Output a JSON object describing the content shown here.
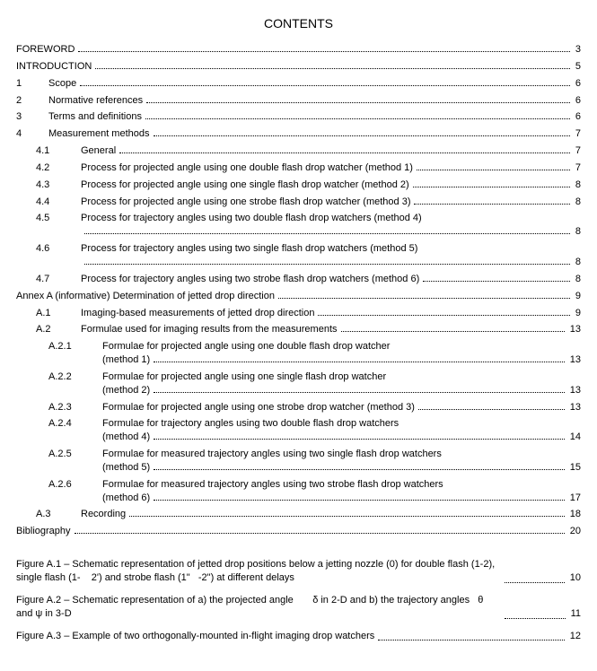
{
  "title": "CONTENTS",
  "toc": [
    {
      "indent": 0,
      "num": "",
      "label": "FOREWORD",
      "page": "3"
    },
    {
      "indent": 0,
      "num": "",
      "label": "INTRODUCTION",
      "page": "5"
    },
    {
      "indent": 1,
      "num": "1",
      "label": "Scope",
      "page": "6"
    },
    {
      "indent": 1,
      "num": "2",
      "label": "Normative references",
      "page": "6"
    },
    {
      "indent": 1,
      "num": "3",
      "label": "Terms and definitions",
      "page": "6"
    },
    {
      "indent": 1,
      "num": "4",
      "label": "Measurement methods",
      "page": "7"
    },
    {
      "indent": 2,
      "num": "4.1",
      "label": "General",
      "page": "7"
    },
    {
      "indent": 2,
      "num": "4.2",
      "label": "Process for projected angle using one double flash drop watcher (method 1)",
      "page": "7"
    },
    {
      "indent": 2,
      "num": "4.3",
      "label": "Process for projected angle using one single flash drop watcher (method 2)",
      "page": "8"
    },
    {
      "indent": 2,
      "num": "4.4",
      "label": "Process for projected angle using one strobe flash drop watcher (method 3)",
      "page": "8"
    },
    {
      "indent": 2,
      "num": "4.5",
      "label": "Process for trajectory angles using two double flash drop watchers (method 4)",
      "page": "8",
      "wrap": true
    },
    {
      "indent": 2,
      "num": "4.6",
      "label": "Process for trajectory angles using two single flash drop watchers (method 5)",
      "page": "8",
      "wrap": true
    },
    {
      "indent": 2,
      "num": "4.7",
      "label": "Process for trajectory angles using two strobe flash drop watchers (method 6)",
      "page": "8"
    },
    {
      "indent": 0,
      "num": "",
      "label": "Annex A (informative)  Determination of jetted drop direction",
      "page": "9"
    },
    {
      "indent": 2,
      "num": "A.1",
      "label": "Imaging-based measurements of jetted drop direction",
      "page": "9"
    },
    {
      "indent": 2,
      "num": "A.2",
      "label": "Formulae used for imaging results from the measurements",
      "page": "13"
    },
    {
      "indent": 3,
      "num": "A.2.1",
      "label": "Formulae for projected angle using one double flash drop watcher (method 1)",
      "page": "13",
      "wrap2": true
    },
    {
      "indent": 3,
      "num": "A.2.2",
      "label": "Formulae for projected angle using one single flash drop watcher (method 2)",
      "page": "13",
      "wrap2": true
    },
    {
      "indent": 3,
      "num": "A.2.3",
      "label": "Formulae for projected angle using one strobe drop watcher (method 3)",
      "page": "13"
    },
    {
      "indent": 3,
      "num": "A.2.4",
      "label": "Formulae for trajectory angles using two double flash drop watchers (method 4)",
      "page": "14",
      "wrap2": true
    },
    {
      "indent": 3,
      "num": "A.2.5",
      "label": "Formulae for measured trajectory angles using two single flash drop watchers (method 5)",
      "page": "15",
      "wrap2": true
    },
    {
      "indent": 3,
      "num": "A.2.6",
      "label": "Formulae for measured trajectory angles using two strobe flash drop watchers (method 6)",
      "page": "17",
      "wrap2": true
    },
    {
      "indent": 2,
      "num": "A.3",
      "label": "Recording",
      "page": "18"
    },
    {
      "indent": 0,
      "num": "",
      "label": "Bibliography",
      "page": "20"
    }
  ],
  "figures": [
    {
      "label": "Figure A.1 – Schematic representation of jetted drop positions below a jetting nozzle (0) for double flash (1-2), single flash (1-    2') and strobe flash (1\"   -2\") at different delays",
      "page": "10"
    },
    {
      "label": "Figure A.2 – Schematic representation of a) the projected angle       δ in 2-D and b) the trajectory angles   θ and  ψ in 3-D",
      "page": "11"
    },
    {
      "label": "Figure A.3 – Example of two orthogonally-mounted in-flight imaging drop watchers",
      "page": "12"
    }
  ]
}
